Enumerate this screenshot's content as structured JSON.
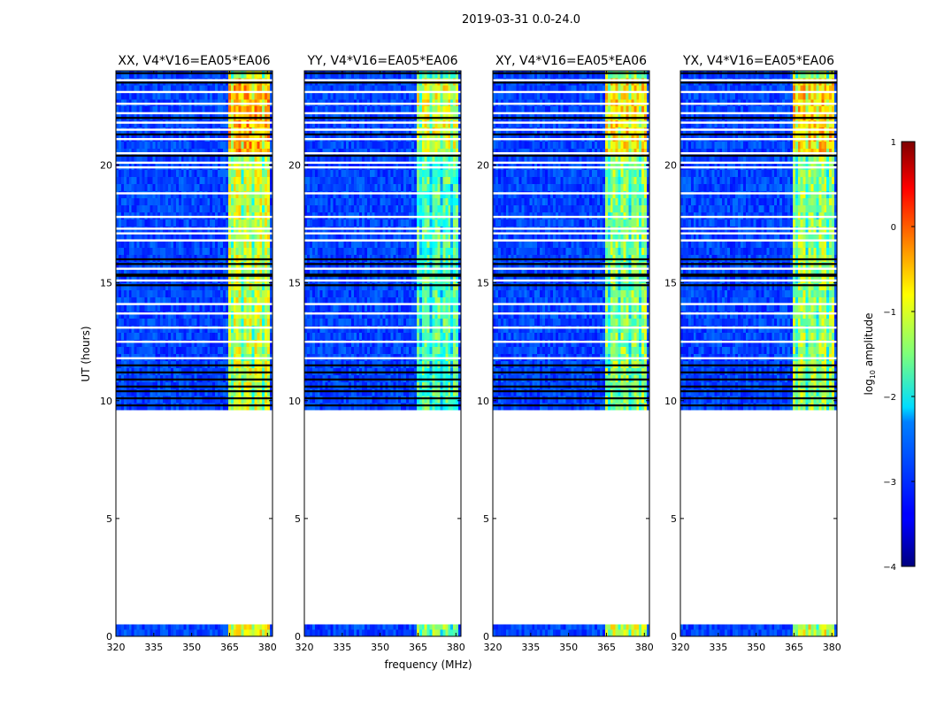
{
  "figure": {
    "suptitle": "2019-03-31 0.0-24.0"
  },
  "chart_data": {
    "type": "heatmap",
    "xlabel": "frequency (MHz)",
    "ylabel": "UT (hours)",
    "xlim": [
      320,
      382
    ],
    "ylim": [
      0,
      24
    ],
    "xticks": [
      320,
      335,
      350,
      365,
      380
    ],
    "xtick_labels": [
      "320",
      "335",
      "350",
      "365",
      "380"
    ],
    "yticks": [
      0,
      5,
      10,
      15,
      20
    ],
    "ytick_labels": [
      "0",
      "5",
      "10",
      "15",
      "20"
    ],
    "data_time_ranges": [
      [
        0.0,
        0.5
      ],
      [
        9.6,
        24.0
      ]
    ],
    "bright_band_mhz": [
      364,
      380
    ],
    "blank_rows_hours": [
      11.8,
      12.5,
      13.1,
      13.7,
      14.1,
      15.1,
      15.6,
      16.8,
      17.1,
      17.3,
      17.8,
      18.8,
      19.9,
      20.1,
      20.5,
      21.1,
      21.5,
      21.8,
      22.2,
      22.6,
      23.1,
      23.6
    ],
    "flagged_rows_hours": [
      9.8,
      10.1,
      10.4,
      10.6,
      10.9,
      11.2,
      11.5,
      14.9,
      15.3,
      15.35,
      15.8,
      16.0,
      20.4,
      21.3,
      22.0,
      23.5,
      23.9
    ],
    "panels": [
      {
        "title": "XX, V4*V16=EA05*EA06",
        "band_level_db": -0.4
      },
      {
        "title": "YY, V4*V16=EA05*EA06",
        "band_level_db": -1.0
      },
      {
        "title": "XY, V4*V16=EA05*EA06",
        "band_level_db": -0.7
      },
      {
        "title": "YX, V4*V16=EA05*EA06",
        "band_level_db": -0.6
      }
    ],
    "colorbar": {
      "label": "log$_{10}$ amplitude",
      "label_main": "log",
      "label_sub": "10",
      "label_rest": " amplitude",
      "range": [
        -4,
        1
      ],
      "ticks": [
        1,
        0,
        -1,
        -2,
        -3,
        -4
      ],
      "tick_labels": [
        "1",
        "0",
        "−1",
        "−2",
        "−3",
        "−4"
      ],
      "colormap": "jet"
    }
  }
}
